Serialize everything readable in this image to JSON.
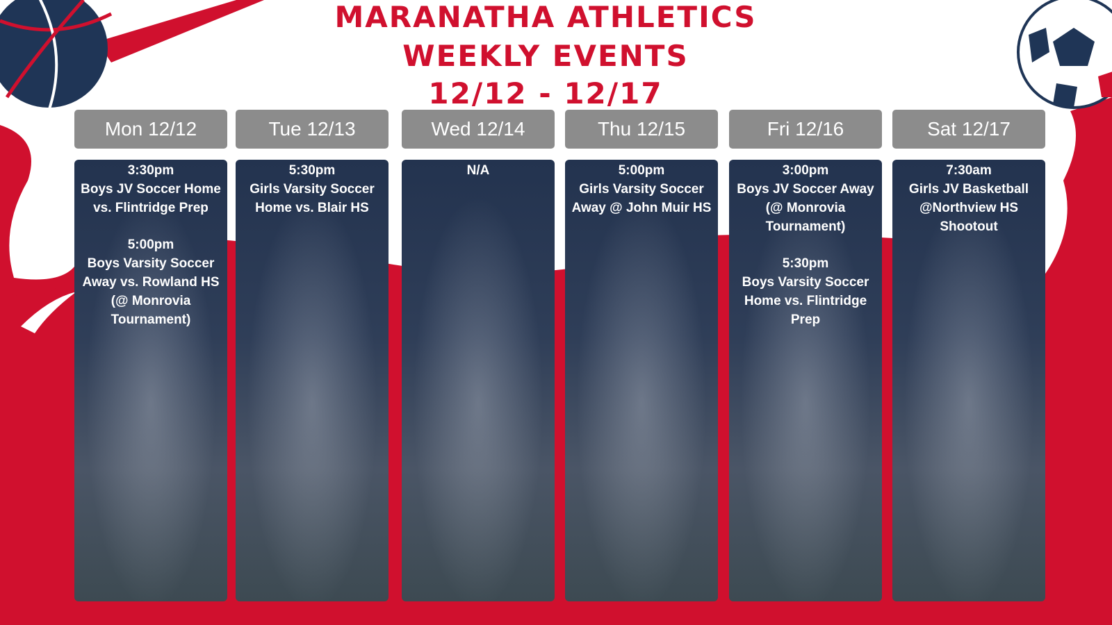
{
  "title": {
    "line1": "MARANATHA ATHLETICS",
    "line2": "WEEKLY EVENTS",
    "line3": "12/12 - 12/17"
  },
  "colors": {
    "red": "#d0102e",
    "navy": "#1f3556",
    "header_gray": "#8c8c8c"
  },
  "decor": [
    "basketball-icon",
    "soccer-ball-icon"
  ],
  "days": [
    {
      "header": "Mon 12/12",
      "events": [
        {
          "time": "3:30pm",
          "desc": "Boys JV Soccer Home vs. Flintridge Prep"
        },
        {
          "time": "5:00pm",
          "desc": "Boys Varsity Soccer Away vs. Rowland HS (@ Monrovia Tournament)"
        }
      ]
    },
    {
      "header": "Tue 12/13",
      "events": [
        {
          "time": "5:30pm",
          "desc": "Girls Varsity Soccer Home vs. Blair HS"
        }
      ]
    },
    {
      "header": "Wed 12/14",
      "events": [
        {
          "time": "N/A",
          "desc": ""
        }
      ]
    },
    {
      "header": "Thu 12/15",
      "events": [
        {
          "time": "5:00pm",
          "desc": "Girls Varsity Soccer Away @ John Muir HS"
        }
      ]
    },
    {
      "header": "Fri 12/16",
      "events": [
        {
          "time": "3:00pm",
          "desc": "Boys JV Soccer Away (@ Monrovia Tournament)"
        },
        {
          "time": "5:30pm",
          "desc": "Boys Varsity Soccer Home vs. Flintridge Prep"
        }
      ]
    },
    {
      "header": "Sat 12/17",
      "events": [
        {
          "time": "7:30am",
          "desc": "Girls JV Basketball @Northview HS Shootout"
        }
      ]
    }
  ]
}
